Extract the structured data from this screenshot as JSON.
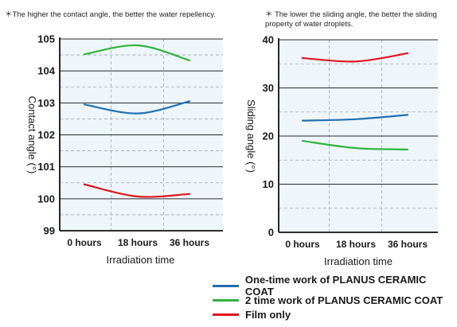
{
  "notes": {
    "left": "＊The higher the contact angle, the better the water repellency.",
    "right": "＊ The lower the sliding angle, the better the sliding property of water droplets."
  },
  "legend": [
    {
      "label": "One-time work of PLANUS CERAMIC COAT",
      "color": "#1f6fb2"
    },
    {
      "label": "2 time work of PLANUS CERAMIC COAT",
      "color": "#2db53c"
    },
    {
      "label": "Film only",
      "color": "#e0161e"
    }
  ],
  "chart_data": [
    {
      "type": "line",
      "title": "",
      "xlabel": "Irradiation time",
      "ylabel": "Contact angle (°)",
      "categories": [
        "0 hours",
        "18 hours",
        "36 hours"
      ],
      "ylim": [
        99,
        105
      ],
      "yticks": [
        "99",
        "100",
        "101",
        "102",
        "103",
        "104",
        "105"
      ],
      "grid": true,
      "series": [
        {
          "name": "One-time work of PLANUS CERAMIC COAT",
          "color": "#1f6fb2",
          "values": [
            102.95,
            102.67,
            103.05
          ]
        },
        {
          "name": "2 time work of PLANUS CERAMIC COAT",
          "color": "#2db53c",
          "values": [
            104.52,
            104.8,
            104.33
          ]
        },
        {
          "name": "Film only",
          "color": "#e0161e",
          "values": [
            100.45,
            100.07,
            100.15
          ]
        }
      ]
    },
    {
      "type": "line",
      "title": "",
      "xlabel": "Irradiation time",
      "ylabel": "Sliding angle (°)",
      "categories": [
        "0 hours",
        "18 hours",
        "36 hours"
      ],
      "ylim": [
        0,
        40
      ],
      "yticks": [
        "0",
        "10",
        "20",
        "30",
        "40"
      ],
      "grid": true,
      "series": [
        {
          "name": "One-time work of PLANUS CERAMIC COAT",
          "color": "#1f6fb2",
          "values": [
            23.2,
            23.5,
            24.4
          ]
        },
        {
          "name": "2 time work of PLANUS CERAMIC COAT",
          "color": "#2db53c",
          "values": [
            19.0,
            17.5,
            17.2
          ]
        },
        {
          "name": "Film only",
          "color": "#e0161e",
          "values": [
            36.2,
            35.5,
            37.2
          ]
        }
      ]
    }
  ]
}
